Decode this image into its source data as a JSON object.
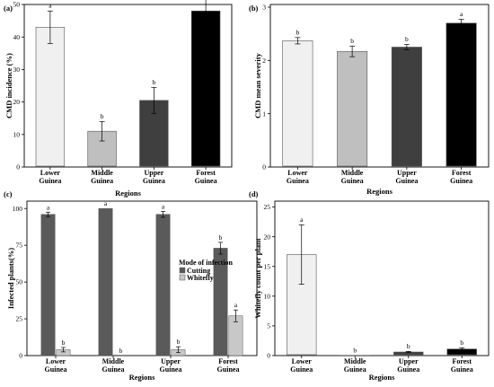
{
  "chart_data": [
    {
      "panel": "(a)",
      "type": "bar",
      "xlabel": "Regions",
      "ylabel": "CMD incidence (%)",
      "categories": [
        [
          "Lower",
          "Guinea"
        ],
        [
          "Middle",
          "Guinea"
        ],
        [
          "Upper",
          "Guinea"
        ],
        [
          "Forest",
          "Guinea"
        ]
      ],
      "values": [
        43,
        11,
        20.5,
        48
      ],
      "errors": [
        5,
        3,
        4,
        4.5
      ],
      "letters": [
        "a",
        "b",
        "b",
        "a"
      ],
      "colors": [
        "#f0f0f0",
        "#bfbfbf",
        "#3f3f3f",
        "#000000"
      ],
      "ylim": [
        0,
        50
      ],
      "yticks": [
        0,
        10,
        20,
        30,
        40,
        50
      ],
      "grid": false
    },
    {
      "panel": "(b)",
      "type": "bar",
      "xlabel": "Regions",
      "ylabel": "CMD mean severity",
      "categories": [
        [
          "Lower",
          "Guinea"
        ],
        [
          "Middle",
          "Guinea"
        ],
        [
          "Upper",
          "Guinea"
        ],
        [
          "Forest",
          "Guinea"
        ]
      ],
      "values": [
        2.37,
        2.17,
        2.25,
        2.7
      ],
      "errors": [
        0.06,
        0.1,
        0.05,
        0.07
      ],
      "letters": [
        "b",
        "b",
        "b",
        "a"
      ],
      "colors": [
        "#f0f0f0",
        "#bfbfbf",
        "#3f3f3f",
        "#000000"
      ],
      "ylim": [
        0,
        3.05
      ],
      "yticks": [
        0,
        1,
        2,
        3
      ],
      "grid": false
    },
    {
      "panel": "(c)",
      "type": "bar",
      "xlabel": "Regions",
      "ylabel": "Infected plants(%)",
      "categories": [
        [
          "Lower",
          "Guinea"
        ],
        [
          "Middle",
          "Guinea"
        ],
        [
          "Upper",
          "Guinea"
        ],
        [
          "Forest",
          "Guinea"
        ]
      ],
      "series": [
        {
          "name": "Cutting",
          "color": "#5a5a5a",
          "values": [
            96,
            100,
            96,
            73
          ],
          "errors": [
            1.5,
            0,
            2,
            4
          ],
          "letters": [
            "a",
            "a",
            "a",
            "b"
          ]
        },
        {
          "name": "Whitefly",
          "color": "#c8c8c8",
          "values": [
            4,
            0,
            4,
            27
          ],
          "errors": [
            1.5,
            0,
            2,
            4
          ],
          "letters": [
            "b",
            "b",
            "b",
            "a"
          ]
        }
      ],
      "legend": {
        "title": "Mode of infection",
        "position": "right"
      },
      "ylim": [
        0,
        105
      ],
      "yticks": [
        0,
        25,
        50,
        75,
        100
      ],
      "grid": false
    },
    {
      "panel": "(d)",
      "type": "bar",
      "xlabel": "Regions",
      "ylabel": "Whitefly count per plant",
      "categories": [
        [
          "Lower",
          "Guinea"
        ],
        [
          "Middle",
          "Guinea"
        ],
        [
          "Upper",
          "Guinea"
        ],
        [
          "Forest",
          "Guinea"
        ]
      ],
      "values": [
        17,
        0,
        0.6,
        1.1
      ],
      "errors": [
        5,
        0,
        0.1,
        0.2
      ],
      "letters": [
        "a",
        "b",
        "b",
        "b"
      ],
      "colors": [
        "#f0f0f0",
        "#bfbfbf",
        "#3f3f3f",
        "#000000"
      ],
      "ylim": [
        0,
        26
      ],
      "yticks": [
        0,
        5,
        10,
        15,
        20,
        25
      ],
      "grid": false
    }
  ]
}
